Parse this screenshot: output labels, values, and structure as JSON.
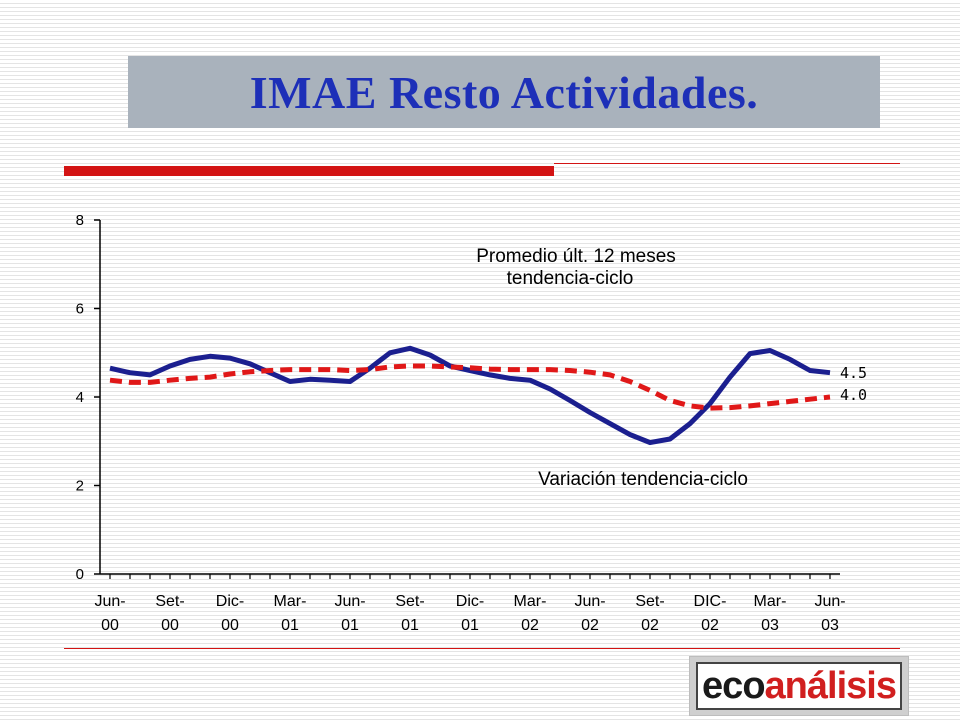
{
  "slide": {
    "title": "IMAE Resto Actividades.",
    "accent_color": "#d31414",
    "title_color": "#1d2fb8",
    "title_bg": "#a9b2bc"
  },
  "logo": {
    "part1": "eco",
    "part2": "análisis"
  },
  "chart_data": {
    "type": "line",
    "title": "",
    "xlabel": "",
    "ylabel": "",
    "ylim": [
      0,
      8
    ],
    "yticks": [
      0,
      2,
      4,
      6,
      8
    ],
    "grid": false,
    "x_tick_labels": [
      [
        "Jun-",
        "00"
      ],
      [
        "Set-",
        "00"
      ],
      [
        "Dic-",
        "00"
      ],
      [
        "Mar-",
        "01"
      ],
      [
        "Jun-",
        "01"
      ],
      [
        "Set-",
        "01"
      ],
      [
        "Dic-",
        "01"
      ],
      [
        "Mar-",
        "02"
      ],
      [
        "Jun-",
        "02"
      ],
      [
        "Set-",
        "02"
      ],
      [
        "DIC-",
        "02"
      ],
      [
        "Mar-",
        "03"
      ],
      [
        "Jun-",
        "03"
      ]
    ],
    "x_months": [
      "Jun-00",
      "Jul-00",
      "Ago-00",
      "Set-00",
      "Oct-00",
      "Nov-00",
      "Dic-00",
      "Ene-01",
      "Feb-01",
      "Mar-01",
      "Abr-01",
      "May-01",
      "Jun-01",
      "Jul-01",
      "Ago-01",
      "Set-01",
      "Oct-01",
      "Nov-01",
      "Dic-01",
      "Ene-02",
      "Feb-02",
      "Mar-02",
      "Abr-02",
      "May-02",
      "Jun-02",
      "Jul-02",
      "Ago-02",
      "Set-02",
      "Oct-02",
      "Nov-02",
      "DIC-02",
      "Ene-03",
      "Feb-03",
      "Mar-03",
      "Abr-03",
      "May-03",
      "Jun-03"
    ],
    "series": [
      {
        "name": "Variación tendencia-ciclo",
        "color": "#1b1f8f",
        "style": "solid",
        "values": [
          4.65,
          4.55,
          4.5,
          4.7,
          4.85,
          4.92,
          4.88,
          4.75,
          4.55,
          4.35,
          4.4,
          4.38,
          4.35,
          4.65,
          5.0,
          5.1,
          4.95,
          4.7,
          4.6,
          4.5,
          4.42,
          4.38,
          4.18,
          3.92,
          3.65,
          3.4,
          3.15,
          2.97,
          3.05,
          3.4,
          3.85,
          4.45,
          4.98,
          5.05,
          4.85,
          4.6,
          4.55
        ],
        "end_label": "4.5"
      },
      {
        "name": "Promedio últ. 12 meses tendencia-ciclo",
        "color": "#e01818",
        "style": "dashed",
        "values": [
          4.38,
          4.33,
          4.33,
          4.38,
          4.42,
          4.45,
          4.52,
          4.57,
          4.6,
          4.62,
          4.62,
          4.62,
          4.6,
          4.62,
          4.68,
          4.7,
          4.7,
          4.68,
          4.66,
          4.63,
          4.62,
          4.62,
          4.62,
          4.6,
          4.56,
          4.5,
          4.35,
          4.15,
          3.92,
          3.8,
          3.75,
          3.76,
          3.8,
          3.85,
          3.9,
          3.95,
          4.0
        ],
        "end_label": "4.0"
      }
    ],
    "annotations": [
      {
        "text": "Promedio últ. 12 meses",
        "series": 1
      },
      {
        "text": "tendencia-ciclo",
        "series": 1
      },
      {
        "text": "Variación tendencia-ciclo",
        "series": 0
      }
    ]
  }
}
